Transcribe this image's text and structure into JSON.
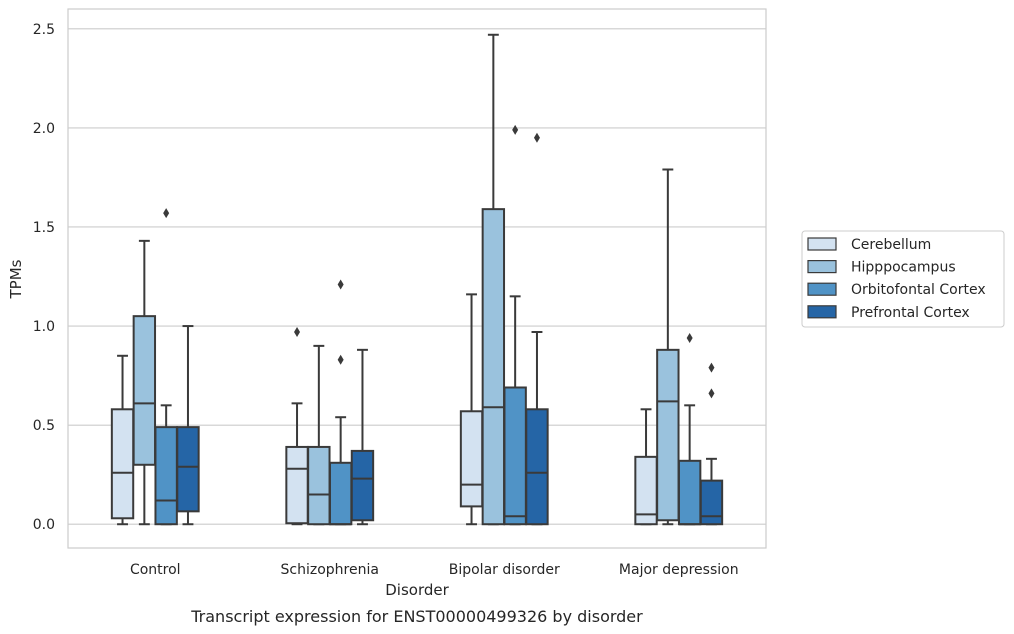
{
  "chart_data": {
    "type": "boxplot",
    "title": "",
    "caption": "Transcript expression for ENST00000499326 by disorder",
    "xlabel": "Disorder",
    "ylabel": "TPMs",
    "ylim": [
      -0.12,
      2.6
    ],
    "yticks": [
      "0.0",
      "0.5",
      "1.0",
      "1.5",
      "2.0",
      "2.5"
    ],
    "grid": true,
    "legend_position": "right",
    "categories": [
      "Control",
      "Schizophrenia",
      "Bipolar disorder",
      "Major depression"
    ],
    "series": [
      {
        "name": "Cerebellum",
        "color": "#d3e2f1",
        "boxes": [
          {
            "whislo": 0.0,
            "q1": 0.03,
            "med": 0.26,
            "q3": 0.58,
            "whishi": 0.85,
            "fliers": []
          },
          {
            "whislo": 0.0,
            "q1": 0.005,
            "med": 0.28,
            "q3": 0.39,
            "whishi": 0.61,
            "fliers": [
              0.97
            ]
          },
          {
            "whislo": 0.0,
            "q1": 0.09,
            "med": 0.2,
            "q3": 0.57,
            "whishi": 1.16,
            "fliers": []
          },
          {
            "whislo": 0.0,
            "q1": 0.0,
            "med": 0.05,
            "q3": 0.34,
            "whishi": 0.58,
            "fliers": []
          }
        ]
      },
      {
        "name": "Hipppocampus",
        "color": "#9ac2dd",
        "boxes": [
          {
            "whislo": 0.0,
            "q1": 0.3,
            "med": 0.61,
            "q3": 1.05,
            "whishi": 1.43,
            "fliers": []
          },
          {
            "whislo": 0.0,
            "q1": 0.0,
            "med": 0.15,
            "q3": 0.39,
            "whishi": 0.9,
            "fliers": []
          },
          {
            "whislo": 0.0,
            "q1": 0.0,
            "med": 0.59,
            "q3": 1.59,
            "whishi": 2.47,
            "fliers": []
          },
          {
            "whislo": 0.0,
            "q1": 0.02,
            "med": 0.62,
            "q3": 0.88,
            "whishi": 1.79,
            "fliers": []
          }
        ]
      },
      {
        "name": "Orbitofontal Cortex",
        "color": "#5093c6",
        "boxes": [
          {
            "whislo": 0.0,
            "q1": 0.0,
            "med": 0.12,
            "q3": 0.49,
            "whishi": 0.6,
            "fliers": [
              1.57
            ]
          },
          {
            "whislo": 0.0,
            "q1": 0.0,
            "med": 0.0,
            "q3": 0.31,
            "whishi": 0.54,
            "fliers": [
              0.83,
              1.21
            ]
          },
          {
            "whislo": 0.0,
            "q1": 0.0,
            "med": 0.04,
            "q3": 0.69,
            "whishi": 1.15,
            "fliers": [
              1.99
            ]
          },
          {
            "whislo": 0.0,
            "q1": 0.0,
            "med": 0.0,
            "q3": 0.32,
            "whishi": 0.6,
            "fliers": [
              0.94
            ]
          }
        ]
      },
      {
        "name": "Prefrontal Cortex",
        "color": "#2565a6",
        "boxes": [
          {
            "whislo": 0.0,
            "q1": 0.065,
            "med": 0.29,
            "q3": 0.49,
            "whishi": 1.0,
            "fliers": []
          },
          {
            "whislo": 0.0,
            "q1": 0.02,
            "med": 0.23,
            "q3": 0.37,
            "whishi": 0.88,
            "fliers": []
          },
          {
            "whislo": 0.0,
            "q1": 0.0,
            "med": 0.26,
            "q3": 0.58,
            "whishi": 0.97,
            "fliers": [
              1.95
            ]
          },
          {
            "whislo": 0.0,
            "q1": 0.0,
            "med": 0.04,
            "q3": 0.22,
            "whishi": 0.33,
            "fliers": [
              0.66,
              0.79
            ]
          }
        ]
      }
    ]
  }
}
